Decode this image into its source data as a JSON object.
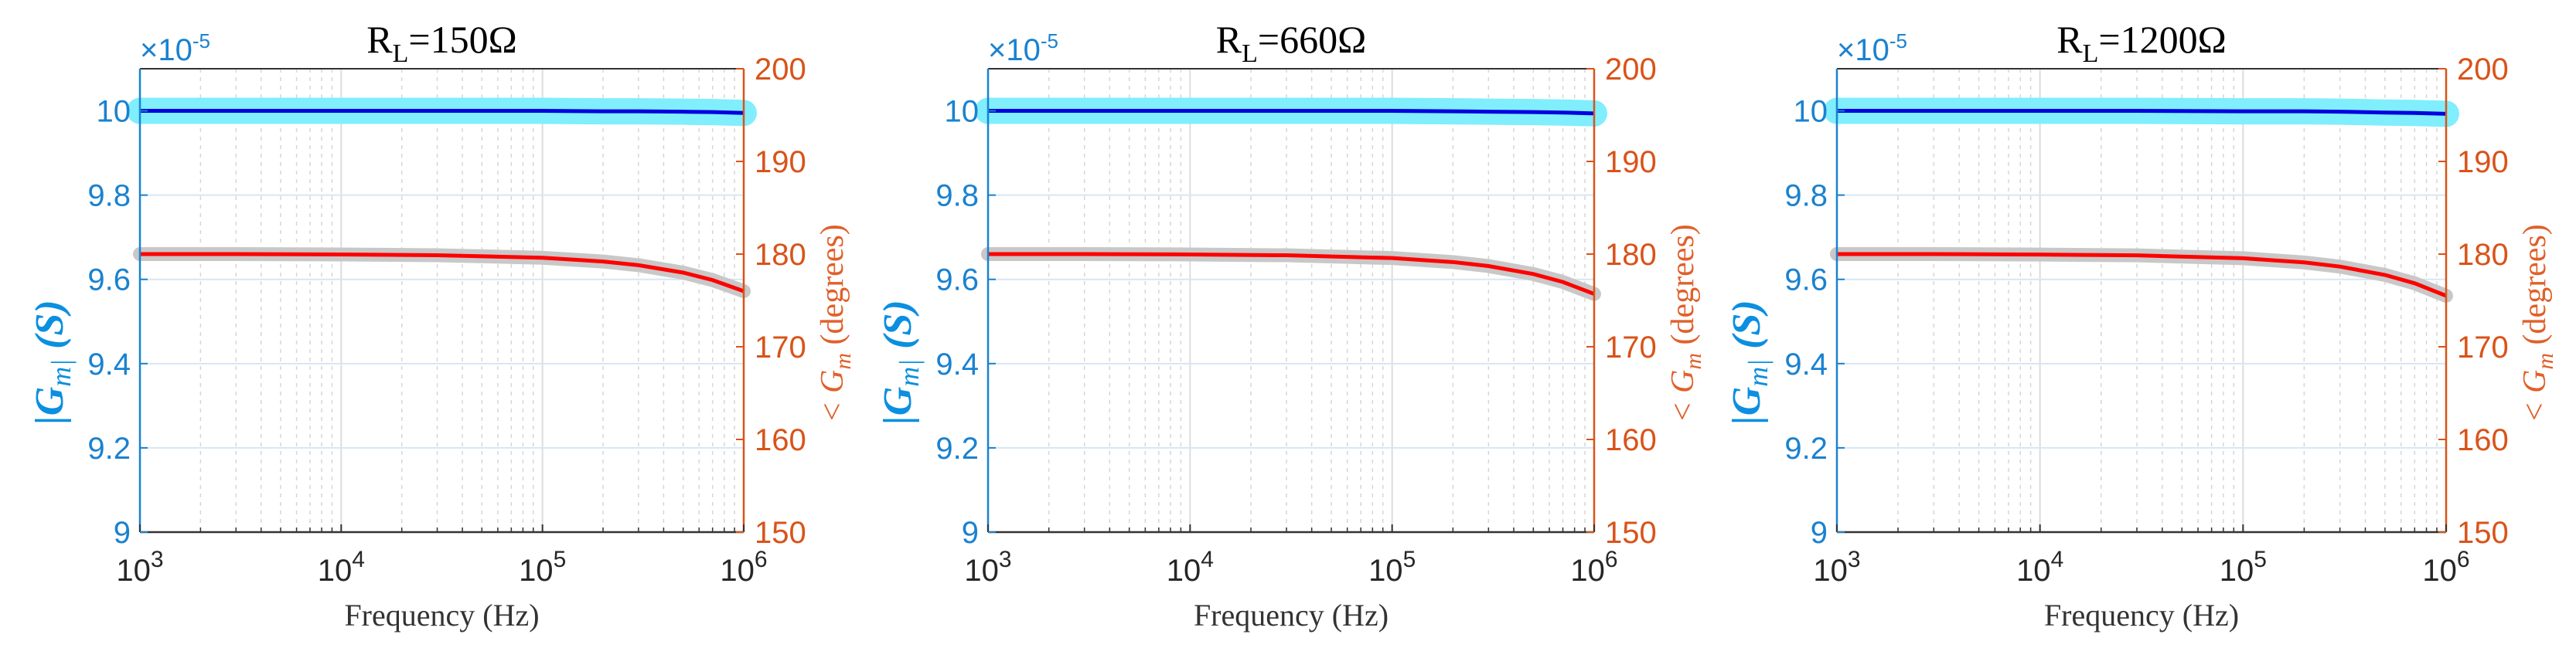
{
  "colors": {
    "left_axis": "#1a82d0",
    "right_axis": "#d95319",
    "magnitude_line": "#0000e0",
    "magnitude_band": "#80eefc",
    "phase_line": "#ff0000",
    "phase_band": "#c8c8c8"
  },
  "chart_data": [
    {
      "type": "line",
      "title_main": "R",
      "title_sub": "L",
      "title_rest": "=150Ω",
      "xlabel": "Frequency (Hz)",
      "ylabel_left": "|G_m| (S)",
      "ylabel_right": "< G_m (degrees)",
      "x_scale": "log",
      "xlim": [
        1000,
        1000000
      ],
      "x_ticks": [
        "10^3",
        "10^4",
        "10^5",
        "10^6"
      ],
      "ylim_left": [
        9,
        10.1
      ],
      "y_ticks_left": [
        "9",
        "9.2",
        "9.4",
        "9.6",
        "9.8",
        "10"
      ],
      "y_left_exponent": "×10^-5",
      "ylim_right": [
        150,
        200
      ],
      "y_ticks_right": [
        "150",
        "160",
        "170",
        "180",
        "190",
        "200"
      ],
      "grid": true,
      "x": [
        1000,
        3000,
        10000,
        30000,
        100000,
        200000,
        300000,
        500000,
        700000,
        1000000
      ],
      "series": [
        {
          "axis": "left",
          "values": [
            10.0,
            10.0,
            10.0,
            10.0,
            10.0,
            9.999,
            9.999,
            9.998,
            9.997,
            9.995
          ]
        },
        {
          "axis": "right",
          "values": [
            180.0,
            180.0,
            179.96,
            179.88,
            179.6,
            179.2,
            178.8,
            178.0,
            177.2,
            176.0
          ]
        }
      ]
    },
    {
      "type": "line",
      "title_main": "R",
      "title_sub": "L",
      "title_rest": "=660Ω",
      "xlabel": "Frequency (Hz)",
      "ylabel_left": "|G_m| (S)",
      "ylabel_right": "< G_m (degrees)",
      "x_scale": "log",
      "xlim": [
        1000,
        1000000
      ],
      "x_ticks": [
        "10^3",
        "10^4",
        "10^5",
        "10^6"
      ],
      "ylim_left": [
        9,
        10.1
      ],
      "y_ticks_left": [
        "9",
        "9.2",
        "9.4",
        "9.6",
        "9.8",
        "10"
      ],
      "y_left_exponent": "×10^-5",
      "ylim_right": [
        150,
        200
      ],
      "y_ticks_right": [
        "150",
        "160",
        "170",
        "180",
        "190",
        "200"
      ],
      "grid": true,
      "x": [
        1000,
        3000,
        10000,
        30000,
        100000,
        200000,
        300000,
        500000,
        700000,
        1000000
      ],
      "series": [
        {
          "axis": "left",
          "values": [
            10.0,
            10.0,
            10.0,
            10.0,
            10.0,
            9.999,
            9.998,
            9.997,
            9.996,
            9.994
          ]
        },
        {
          "axis": "right",
          "values": [
            180.0,
            180.0,
            179.96,
            179.87,
            179.57,
            179.14,
            178.71,
            177.85,
            176.99,
            175.7
          ]
        }
      ]
    },
    {
      "type": "line",
      "title_main": "R",
      "title_sub": "L",
      "title_rest": "=1200Ω",
      "xlabel": "Frequency (Hz)",
      "ylabel_left": "|G_m| (S)",
      "ylabel_right": "< G_m (degrees)",
      "x_scale": "log",
      "xlim": [
        1000,
        1000000
      ],
      "x_ticks": [
        "10^3",
        "10^4",
        "10^5",
        "10^6"
      ],
      "ylim_left": [
        9,
        10.1
      ],
      "y_ticks_left": [
        "9",
        "9.2",
        "9.4",
        "9.6",
        "9.8",
        "10"
      ],
      "y_left_exponent": "×10^-5",
      "ylim_right": [
        150,
        200
      ],
      "y_ticks_right": [
        "150",
        "160",
        "170",
        "180",
        "190",
        "200"
      ],
      "grid": true,
      "x": [
        1000,
        3000,
        10000,
        30000,
        100000,
        200000,
        300000,
        500000,
        700000,
        1000000
      ],
      "series": [
        {
          "axis": "left",
          "values": [
            10.0,
            10.0,
            10.0,
            10.0,
            9.999,
            9.999,
            9.998,
            9.996,
            9.995,
            9.993
          ]
        },
        {
          "axis": "right",
          "values": [
            180.0,
            180.0,
            179.95,
            179.86,
            179.55,
            179.1,
            178.65,
            177.75,
            176.85,
            175.5
          ]
        }
      ]
    }
  ]
}
